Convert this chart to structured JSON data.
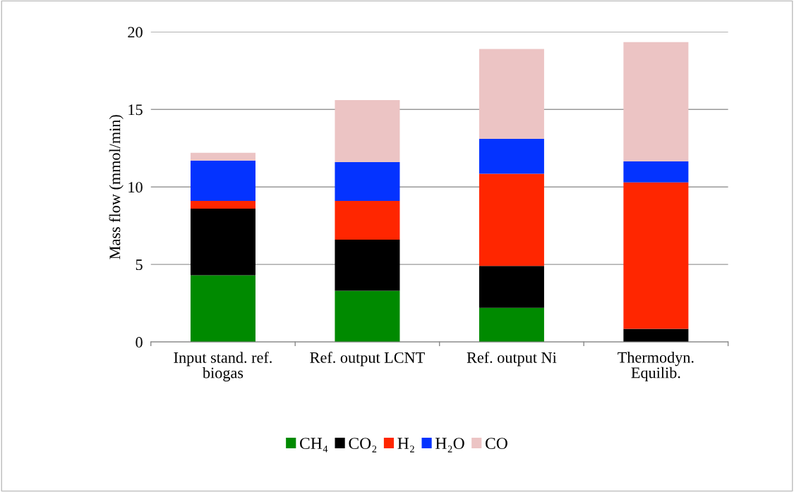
{
  "chart_data": {
    "type": "bar",
    "stacked": true,
    "ylabel": "Mass flow (mmol/min)",
    "categories": [
      "Input stand. ref. biogas",
      "Ref. output LCNT",
      "Ref. output Ni",
      "Thermodyn. Equilib."
    ],
    "series": [
      {
        "name": "CH₄",
        "color": "#008a00",
        "values": [
          4.3,
          3.3,
          2.2,
          0
        ]
      },
      {
        "name": "CO₂",
        "color": "#000000",
        "values": [
          4.3,
          3.3,
          2.7,
          0.85
        ]
      },
      {
        "name": "H₂",
        "color": "#ff2600",
        "values": [
          0.5,
          2.5,
          5.95,
          9.45
        ]
      },
      {
        "name": "H₂O",
        "color": "#0433ff",
        "values": [
          2.6,
          2.5,
          2.25,
          1.35
        ]
      },
      {
        "name": "CO",
        "color": "#ecc4c4",
        "values": [
          0.5,
          4.0,
          5.8,
          7.7
        ]
      }
    ],
    "ylim": [
      0,
      20
    ],
    "yticks": [
      0,
      5,
      10,
      15,
      20
    ],
    "grid": "y",
    "legend": "bottom"
  }
}
